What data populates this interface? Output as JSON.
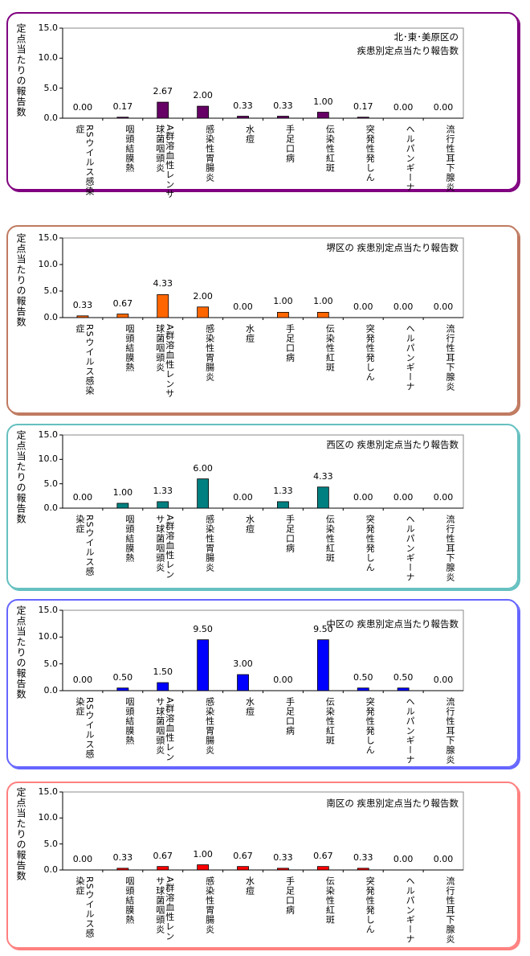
{
  "chart_data": [
    {
      "type": "bar",
      "title": "北･東･美原区の 疾患別定点当たり報告数",
      "title_lines": [
        "北･東･美原区の",
        "疾患別定点当たり報告数"
      ],
      "ylabel": "定点当たりの報告数",
      "ylim": [
        0,
        15
      ],
      "yticks": [
        "15.0",
        "10.0",
        "5.0",
        "0.0"
      ],
      "bar_color": "#660066",
      "border_color": "#800080",
      "categories": [
        "RSウイルス感染症",
        "咽頭結膜熱",
        "A群溶血性レンサ球菌咽頭炎",
        "感染性胃腸炎",
        "水痘",
        "手足口病",
        "伝染性紅斑",
        "突発性発しん",
        "ヘルパンギーナ",
        "流行性耳下腺炎"
      ],
      "values": [
        0,
        0.17,
        2.67,
        2.0,
        0.33,
        0.33,
        1.0,
        0.17,
        0,
        0
      ],
      "value_labels": [
        "0.00",
        "0.17",
        "2.67",
        "2.00",
        "0.33",
        "0.33",
        "1.00",
        "0.17",
        "0.00",
        "0.00"
      ]
    },
    {
      "type": "bar",
      "title": "堺区の 疾患別定点当たり報告数",
      "title_lines": [
        "堺区の 疾患別定点当たり報告数"
      ],
      "ylabel": "定点当たりの報告数",
      "ylim": [
        0,
        15
      ],
      "yticks": [
        "15.0",
        "10.0",
        "5.0",
        "0.0"
      ],
      "bar_color": "#ff6600",
      "border_color": "#c07a60",
      "categories": [
        "RSウイルス感染症",
        "咽頭結膜熱",
        "A群溶血性レンサ球菌咽頭炎",
        "感染性胃腸炎",
        "水痘",
        "手足口病",
        "伝染性紅斑",
        "突発性発しん",
        "ヘルパンギーナ",
        "流行性耳下腺炎"
      ],
      "values": [
        0.33,
        0.67,
        4.33,
        2.0,
        0,
        1.0,
        1.0,
        0,
        0,
        0
      ],
      "value_labels": [
        "0.33",
        "0.67",
        "4.33",
        "2.00",
        "0.00",
        "1.00",
        "1.00",
        "0.00",
        "0.00",
        "0.00"
      ]
    },
    {
      "type": "bar",
      "title": "西区の 疾患別定点当たり報告数",
      "title_lines": [
        "西区の 疾患別定点当たり報告数"
      ],
      "ylabel": "定点当たりの報告数",
      "ylim": [
        0,
        15
      ],
      "yticks": [
        "15.0",
        "10.0",
        "5.0",
        "0.0"
      ],
      "bar_color": "#008080",
      "border_color": "#66c0c0",
      "categories": [
        "RSウイルス感染症",
        "咽頭結膜熱",
        "A群溶血性レンサ球菌咽頭炎",
        "感染性胃腸炎",
        "水痘",
        "手足口病",
        "伝染性紅斑",
        "突発性発しん",
        "ヘルパンギーナ",
        "流行性耳下腺炎"
      ],
      "values": [
        0,
        1.0,
        1.33,
        6.0,
        0,
        1.33,
        4.33,
        0,
        0,
        0
      ],
      "value_labels": [
        "0.00",
        "1.00",
        "1.33",
        "6.00",
        "0.00",
        "1.33",
        "4.33",
        "0.00",
        "0.00",
        "0.00"
      ]
    },
    {
      "type": "bar",
      "title": "中区の 疾患別定点当たり報告数",
      "title_lines": [
        "中区の 疾患別定点当たり報告数"
      ],
      "ylabel": "定点当たりの報告数",
      "ylim": [
        0,
        15
      ],
      "yticks": [
        "15.0",
        "10.0",
        "5.0",
        "0.0"
      ],
      "bar_color": "#0000ff",
      "border_color": "#6666ff",
      "categories": [
        "RSウイルス感染症",
        "咽頭結膜熱",
        "A群溶血性レンサ球菌咽頭炎",
        "感染性胃腸炎",
        "水痘",
        "手足口病",
        "伝染性紅斑",
        "突発性発しん",
        "ヘルパンギーナ",
        "流行性耳下腺炎"
      ],
      "values": [
        0,
        0.5,
        1.5,
        9.5,
        3.0,
        0,
        9.5,
        0.5,
        0.5,
        0
      ],
      "value_labels": [
        "0.00",
        "0.50",
        "1.50",
        "9.50",
        "3.00",
        "0.00",
        "9.50",
        "0.50",
        "0.50",
        "0.00"
      ]
    },
    {
      "type": "bar",
      "title": "南区の 疾患別定点当たり報告数",
      "title_lines": [
        "南区の 疾患別定点当たり報告数"
      ],
      "ylabel": "定点当たりの報告数",
      "ylim": [
        0,
        15
      ],
      "yticks": [
        "15.0",
        "10.0",
        "5.0",
        "0.0"
      ],
      "bar_color": "#ff0000",
      "border_color": "#ff8080",
      "categories": [
        "RSウイルス感染症",
        "咽頭結膜熱",
        "A群溶血性レンサ球菌咽頭炎",
        "感染性胃腸炎",
        "水痘",
        "手足口病",
        "伝染性紅斑",
        "突発性発しん",
        "ヘルパンギーナ",
        "流行性耳下腺炎"
      ],
      "values": [
        0,
        0.33,
        0.67,
        1.0,
        0.67,
        0.33,
        0.67,
        0.33,
        0,
        0
      ],
      "value_labels": [
        "0.00",
        "0.33",
        "0.67",
        "1.00",
        "0.67",
        "0.33",
        "0.67",
        "0.33",
        "0.00",
        "0.00"
      ]
    }
  ]
}
